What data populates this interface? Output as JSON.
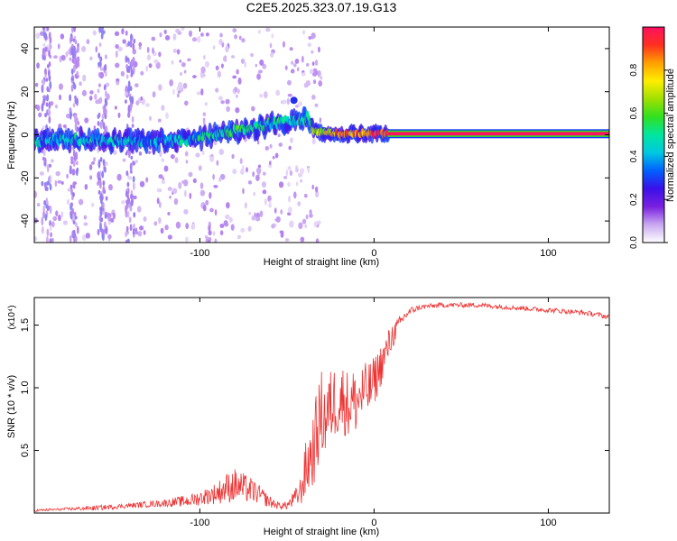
{
  "title": "C2E5.2025.323.07.19.G13",
  "chart_data": [
    {
      "type": "heatmap",
      "title": "C2E5.2025.323.07.19.G13",
      "xlabel": "Height of straight line (km)",
      "ylabel": "Frequency (Hz)",
      "xlim": [
        -195,
        135
      ],
      "ylim": [
        -50,
        50
      ],
      "xticks": [
        -100,
        0,
        100
      ],
      "xtick_labels": [
        "-100",
        "0",
        "100"
      ],
      "yticks": [
        -40,
        -20,
        0,
        20,
        40
      ],
      "ytick_labels": [
        "-40",
        "-20",
        "0",
        "20",
        "40"
      ],
      "colorbar": {
        "label": "Normalized spectral amplitude",
        "range": [
          0.0,
          1.0
        ],
        "ticks": [
          0.0,
          0.2,
          0.4,
          0.6,
          0.8
        ],
        "tick_labels": [
          "0.0",
          "0.2",
          "0.4",
          "0.6",
          "0.8"
        ],
        "colors": [
          "#ffffff",
          "#c9a8f0",
          "#7a1fe0",
          "#3a10e8",
          "#0060ff",
          "#00c8e0",
          "#00e6a0",
          "#30e020",
          "#a0e000",
          "#ffee00",
          "#ffa000",
          "#ff3020",
          "#ff1060"
        ]
      },
      "ridge": {
        "x": [
          -195,
          -170,
          -140,
          -120,
          -105,
          -95,
          -85,
          -70,
          -60,
          -50,
          -42,
          -38,
          -35,
          -30,
          -20,
          -10,
          0,
          10,
          60,
          110,
          135
        ],
        "y": [
          -3,
          -2,
          -3,
          -3,
          -2,
          -1,
          1,
          3,
          5,
          6,
          7,
          8,
          2,
          1,
          0.5,
          0.5,
          0.5,
          0.5,
          0.5,
          0.5,
          0.5
        ],
        "amplitude": [
          0.4,
          0.42,
          0.4,
          0.38,
          0.42,
          0.48,
          0.55,
          0.5,
          0.48,
          0.45,
          0.5,
          0.55,
          0.62,
          0.7,
          0.8,
          0.85,
          0.9,
          0.95,
          0.98,
          1.0,
          1.0
        ]
      },
      "noise_columns_x": [
        -188,
        -172,
        -156,
        -140
      ]
    },
    {
      "type": "line",
      "xlabel": "Height of straight line (km)",
      "ylabel": "SNR (10 * v/v)",
      "y_multiplier_label": "(x10⁴)",
      "xlim": [
        -195,
        135
      ],
      "ylim": [
        0.0,
        1.72
      ],
      "xticks": [
        -100,
        0,
        100
      ],
      "xtick_labels": [
        "-100",
        "0",
        "100"
      ],
      "yticks": [
        0.5,
        1.0,
        1.5
      ],
      "ytick_labels": [
        "0.5",
        "1.0",
        "1.5"
      ],
      "color": "#ee3333",
      "series": [
        {
          "name": "SNR",
          "x": [
            -195,
            -180,
            -160,
            -140,
            -120,
            -105,
            -95,
            -90,
            -85,
            -80,
            -75,
            -70,
            -65,
            -60,
            -55,
            -50,
            -45,
            -42,
            -40,
            -38,
            -35,
            -32,
            -30,
            -28,
            -25,
            -22,
            -20,
            -18,
            -15,
            -12,
            -10,
            -8,
            -5,
            -2,
            0,
            3,
            6,
            10,
            14,
            18,
            22,
            26,
            30,
            40,
            50,
            60,
            70,
            80,
            90,
            100,
            110,
            120,
            130,
            135
          ],
          "y": [
            0.02,
            0.03,
            0.04,
            0.06,
            0.08,
            0.1,
            0.14,
            0.16,
            0.2,
            0.22,
            0.2,
            0.18,
            0.14,
            0.09,
            0.06,
            0.06,
            0.12,
            0.18,
            0.3,
            0.4,
            0.5,
            0.7,
            0.8,
            0.75,
            0.85,
            0.9,
            0.88,
            0.92,
            0.86,
            0.9,
            0.88,
            0.94,
            0.96,
            1.0,
            1.05,
            1.15,
            1.25,
            1.4,
            1.5,
            1.58,
            1.62,
            1.64,
            1.65,
            1.66,
            1.66,
            1.66,
            1.65,
            1.64,
            1.63,
            1.62,
            1.61,
            1.6,
            1.58,
            1.56
          ],
          "noise_amplitude": [
            0.01,
            0.01,
            0.02,
            0.02,
            0.03,
            0.05,
            0.07,
            0.09,
            0.12,
            0.14,
            0.12,
            0.1,
            0.07,
            0.05,
            0.03,
            0.03,
            0.08,
            0.12,
            0.2,
            0.28,
            0.3,
            0.35,
            0.35,
            0.32,
            0.3,
            0.3,
            0.28,
            0.28,
            0.28,
            0.26,
            0.26,
            0.25,
            0.24,
            0.22,
            0.2,
            0.18,
            0.15,
            0.12,
            0.06,
            0.04,
            0.03,
            0.02,
            0.02,
            0.02,
            0.02,
            0.02,
            0.02,
            0.02,
            0.02,
            0.02,
            0.02,
            0.02,
            0.02,
            0.02
          ]
        }
      ]
    }
  ]
}
